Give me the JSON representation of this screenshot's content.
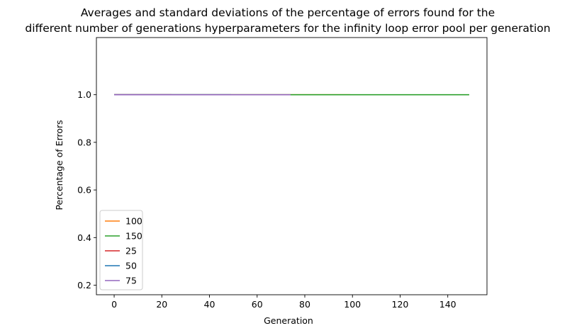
{
  "chart_data": {
    "type": "line",
    "title_lines": [
      "Averages and standard deviations of the percentage of errors found for the",
      "different number of generations hyperparameters for the infinity loop error pool per generation"
    ],
    "xlabel": "Generation",
    "ylabel": "Percentage of Errors",
    "xlim": [
      -7.45,
      156.45
    ],
    "ylim": [
      0.16,
      1.24
    ],
    "xticks": [
      0,
      20,
      40,
      60,
      80,
      100,
      120,
      140
    ],
    "yticks": [
      0.2,
      0.4,
      0.6,
      0.8,
      1.0
    ],
    "ytick_labels": [
      "0.2",
      "0.4",
      "0.6",
      "0.8",
      "1.0"
    ],
    "grid": false,
    "legend_position": "lower-left",
    "series": [
      {
        "name": "100",
        "color": "#ff7f0e",
        "x": [
          0,
          99
        ],
        "y": [
          1.0,
          1.0
        ]
      },
      {
        "name": "150",
        "color": "#2ca02c",
        "x": [
          0,
          149
        ],
        "y": [
          1.0,
          1.0
        ]
      },
      {
        "name": "25",
        "color": "#d62728",
        "x": [
          0,
          24
        ],
        "y": [
          1.0,
          1.0
        ]
      },
      {
        "name": "50",
        "color": "#1f77b4",
        "x": [
          0,
          49
        ],
        "y": [
          1.0,
          1.0
        ]
      },
      {
        "name": "75",
        "color": "#9467bd",
        "x": [
          0,
          74
        ],
        "y": [
          1.0,
          1.0
        ]
      }
    ]
  }
}
